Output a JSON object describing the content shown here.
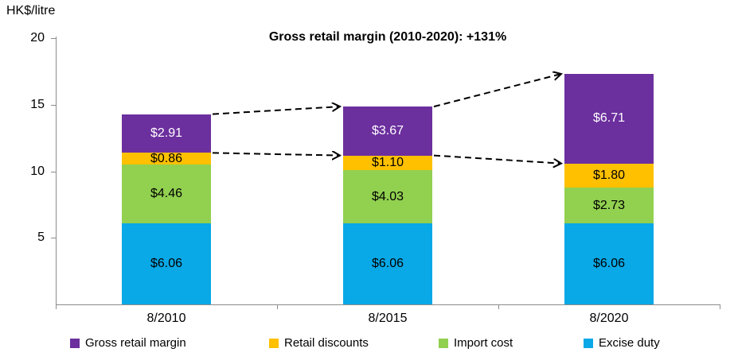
{
  "chart_data": {
    "type": "bar",
    "stacked": true,
    "title": "Gross retail margin (2010-2020): +131%",
    "unit_label": "HK$/litre",
    "categories": [
      "8/2010",
      "8/2015",
      "8/2020"
    ],
    "series": [
      {
        "name": "Excise duty",
        "color": "#09A8E6",
        "label_color": "#000000",
        "values": [
          6.06,
          6.06,
          6.06
        ],
        "labels": [
          "$6.06",
          "$6.06",
          "$6.06"
        ]
      },
      {
        "name": "Import cost",
        "color": "#92D050",
        "label_color": "#000000",
        "values": [
          4.46,
          4.03,
          2.73
        ],
        "labels": [
          "$4.46",
          "$4.03",
          "$2.73"
        ]
      },
      {
        "name": "Retail discounts",
        "color": "#FFC000",
        "label_color": "#000000",
        "values": [
          0.86,
          1.1,
          1.8
        ],
        "labels": [
          "$0.86",
          "$1.10",
          "$1.80"
        ]
      },
      {
        "name": "Gross retail margin",
        "color": "#6C2F9E",
        "label_color": "#FFFFFF",
        "values": [
          2.91,
          3.67,
          6.71
        ],
        "labels": [
          "$2.91",
          "$3.67",
          "$6.71"
        ]
      }
    ],
    "totals": [
      14.29,
      14.86,
      17.3
    ],
    "y_ticks": [
      5,
      10,
      15,
      20
    ],
    "ylim": [
      0,
      20
    ],
    "grid": false,
    "axis_color": "#8C8C8C",
    "legend_position": "bottom",
    "legend_order": [
      "Gross retail margin",
      "Retail discounts",
      "Import cost",
      "Excise duty"
    ],
    "annotations": {
      "arrow_style": "dashed black, open arrowhead",
      "arrows": [
        {
          "from_category": "8/2010",
          "to_category": "8/2015",
          "level": "bar_top"
        },
        {
          "from_category": "8/2010",
          "to_category": "8/2015",
          "level": "margin_base"
        },
        {
          "from_category": "8/2015",
          "to_category": "8/2020",
          "level": "bar_top"
        },
        {
          "from_category": "8/2015",
          "to_category": "8/2020",
          "level": "margin_base"
        }
      ]
    }
  }
}
